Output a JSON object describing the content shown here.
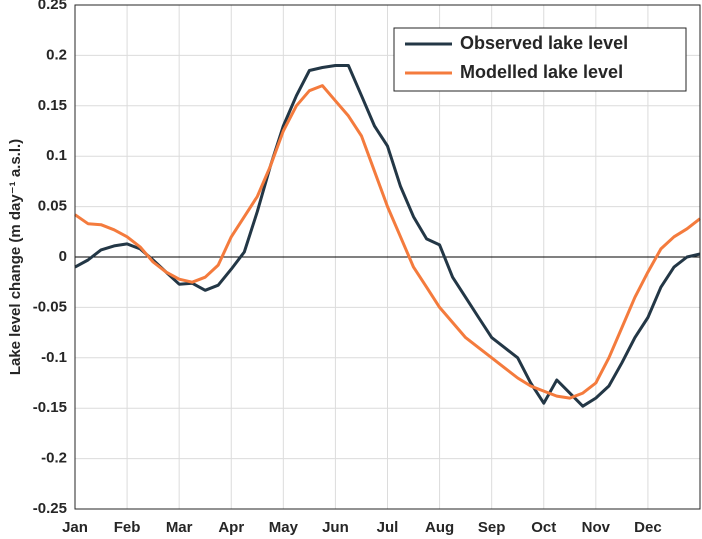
{
  "chart_data": {
    "type": "line",
    "y_label": "Lake level change (m day⁻¹ a.s.l.)",
    "categories": [
      "Jan",
      null,
      null,
      null,
      "Feb",
      null,
      null,
      null,
      "Mar",
      null,
      null,
      null,
      "Apr",
      null,
      null,
      null,
      "May",
      null,
      null,
      null,
      "Jun",
      null,
      null,
      null,
      "Jul",
      null,
      null,
      null,
      "Aug",
      null,
      null,
      null,
      "Sep",
      null,
      null,
      null,
      "Oct",
      null,
      null,
      null,
      "Nov",
      null,
      null,
      null,
      "Dec",
      null,
      null,
      null,
      null
    ],
    "series": [
      {
        "name": "Observed lake level",
        "color": "#233746",
        "values": [
          -0.01,
          -0.003,
          0.007,
          0.011,
          0.013,
          0.008,
          -0.003,
          -0.015,
          -0.027,
          -0.026,
          -0.033,
          -0.028,
          -0.012,
          0.005,
          0.045,
          0.09,
          0.13,
          0.16,
          0.185,
          0.188,
          0.19,
          0.19,
          0.16,
          0.13,
          0.11,
          0.07,
          0.04,
          0.018,
          0.012,
          -0.02,
          -0.04,
          -0.06,
          -0.08,
          -0.09,
          -0.1,
          -0.125,
          -0.145,
          -0.122,
          -0.135,
          -0.148,
          -0.14,
          -0.128,
          -0.105,
          -0.08,
          -0.06,
          -0.03,
          -0.01,
          0.0,
          0.003
        ]
      },
      {
        "name": "Modelled lake level",
        "color": "#f47b3d",
        "values": [
          0.042,
          0.033,
          0.032,
          0.027,
          0.02,
          0.01,
          -0.005,
          -0.015,
          -0.022,
          -0.025,
          -0.02,
          -0.008,
          0.02,
          0.04,
          0.06,
          0.09,
          0.125,
          0.15,
          0.165,
          0.17,
          0.155,
          0.14,
          0.12,
          0.085,
          0.05,
          0.02,
          -0.01,
          -0.03,
          -0.05,
          -0.065,
          -0.08,
          -0.09,
          -0.1,
          -0.11,
          -0.12,
          -0.128,
          -0.133,
          -0.138,
          -0.14,
          -0.135,
          -0.125,
          -0.1,
          -0.07,
          -0.04,
          -0.015,
          0.008,
          0.02,
          0.028,
          0.038
        ]
      }
    ],
    "ylim": [
      -0.25,
      0.25
    ],
    "yticks": [
      -0.25,
      -0.2,
      -0.15,
      -0.1,
      -0.05,
      0,
      0.05,
      0.1,
      0.15,
      0.2,
      0.25
    ],
    "grid": true,
    "legend": "upper right"
  }
}
